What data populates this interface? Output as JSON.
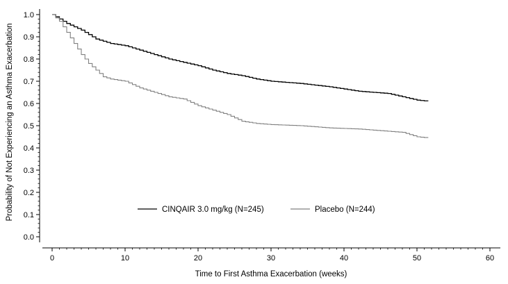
{
  "chart_data": {
    "type": "line",
    "title": "",
    "xlabel": "Time to First Asthma Exacerbation (weeks)",
    "ylabel": "Probability of Not Experiencing an Asthma Exacerbation",
    "xlim": [
      0,
      60
    ],
    "ylim": [
      0.0,
      1.0
    ],
    "x_ticks": [
      0,
      10,
      20,
      30,
      40,
      50,
      60
    ],
    "y_ticks": [
      0.0,
      0.1,
      0.2,
      0.3,
      0.4,
      0.5,
      0.6,
      0.7,
      0.8,
      0.9,
      1.0
    ],
    "x_tick_labels": [
      "0",
      "10",
      "20",
      "30",
      "40",
      "50",
      "60"
    ],
    "y_tick_labels": [
      "0.0",
      "0.1",
      "0.2",
      "0.3",
      "0.4",
      "0.5",
      "0.6",
      "0.7",
      "0.8",
      "0.9",
      "1.0"
    ],
    "grid": false,
    "legend_position": "bottom-center",
    "series": [
      {
        "name": "CINQAIR 3.0 mg/kg (N=245)",
        "color": "#000000",
        "points": [
          [
            0,
            1.0
          ],
          [
            1,
            0.98
          ],
          [
            2,
            0.96
          ],
          [
            4,
            0.93
          ],
          [
            6,
            0.89
          ],
          [
            8,
            0.87
          ],
          [
            10,
            0.86
          ],
          [
            12,
            0.84
          ],
          [
            14,
            0.82
          ],
          [
            16,
            0.8
          ],
          [
            18,
            0.785
          ],
          [
            20,
            0.77
          ],
          [
            22,
            0.75
          ],
          [
            24,
            0.735
          ],
          [
            26,
            0.725
          ],
          [
            28,
            0.71
          ],
          [
            30,
            0.7
          ],
          [
            34,
            0.69
          ],
          [
            38,
            0.675
          ],
          [
            42,
            0.655
          ],
          [
            46,
            0.645
          ],
          [
            48,
            0.63
          ],
          [
            50,
            0.615
          ],
          [
            51.5,
            0.61
          ]
        ]
      },
      {
        "name": "Placebo (N=244)",
        "color": "#808080",
        "points": [
          [
            0,
            1.0
          ],
          [
            1,
            0.97
          ],
          [
            2,
            0.92
          ],
          [
            3,
            0.87
          ],
          [
            4,
            0.82
          ],
          [
            5,
            0.78
          ],
          [
            6,
            0.75
          ],
          [
            7,
            0.72
          ],
          [
            8,
            0.71
          ],
          [
            10,
            0.7
          ],
          [
            12,
            0.67
          ],
          [
            14,
            0.65
          ],
          [
            16,
            0.63
          ],
          [
            18,
            0.62
          ],
          [
            20,
            0.59
          ],
          [
            22,
            0.57
          ],
          [
            24,
            0.55
          ],
          [
            26,
            0.52
          ],
          [
            28,
            0.51
          ],
          [
            30,
            0.505
          ],
          [
            34,
            0.5
          ],
          [
            38,
            0.49
          ],
          [
            42,
            0.485
          ],
          [
            46,
            0.475
          ],
          [
            48,
            0.47
          ],
          [
            50,
            0.45
          ],
          [
            51.5,
            0.445
          ]
        ]
      }
    ]
  }
}
